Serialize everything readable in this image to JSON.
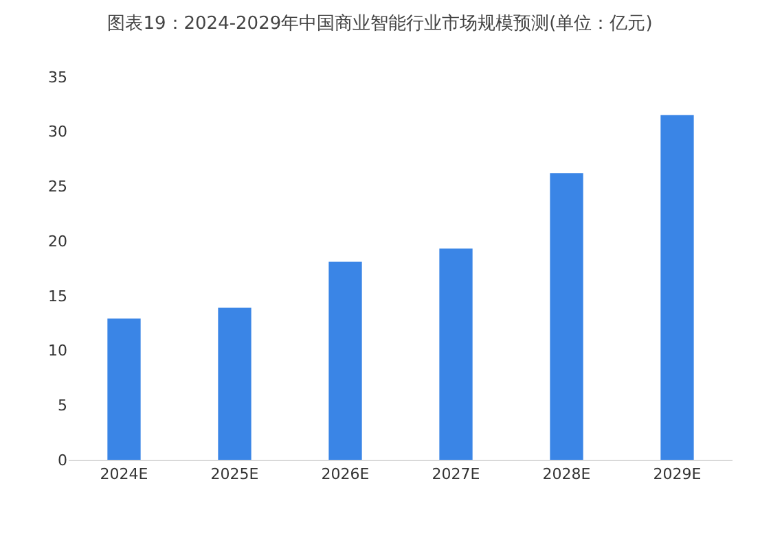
{
  "chart_data": {
    "type": "bar",
    "title": "图表19：2024-2029年中国商业智能行业市场规模预测(单位：亿元)",
    "categories": [
      "2024E",
      "2025E",
      "2026E",
      "2027E",
      "2028E",
      "2029E"
    ],
    "values": [
      12.9,
      13.9,
      18.1,
      19.3,
      26.2,
      31.5
    ],
    "color": "#3a85e6",
    "ylim": [
      0,
      35
    ],
    "yticks": [
      0,
      5,
      10,
      15,
      20,
      25,
      30,
      35
    ]
  }
}
